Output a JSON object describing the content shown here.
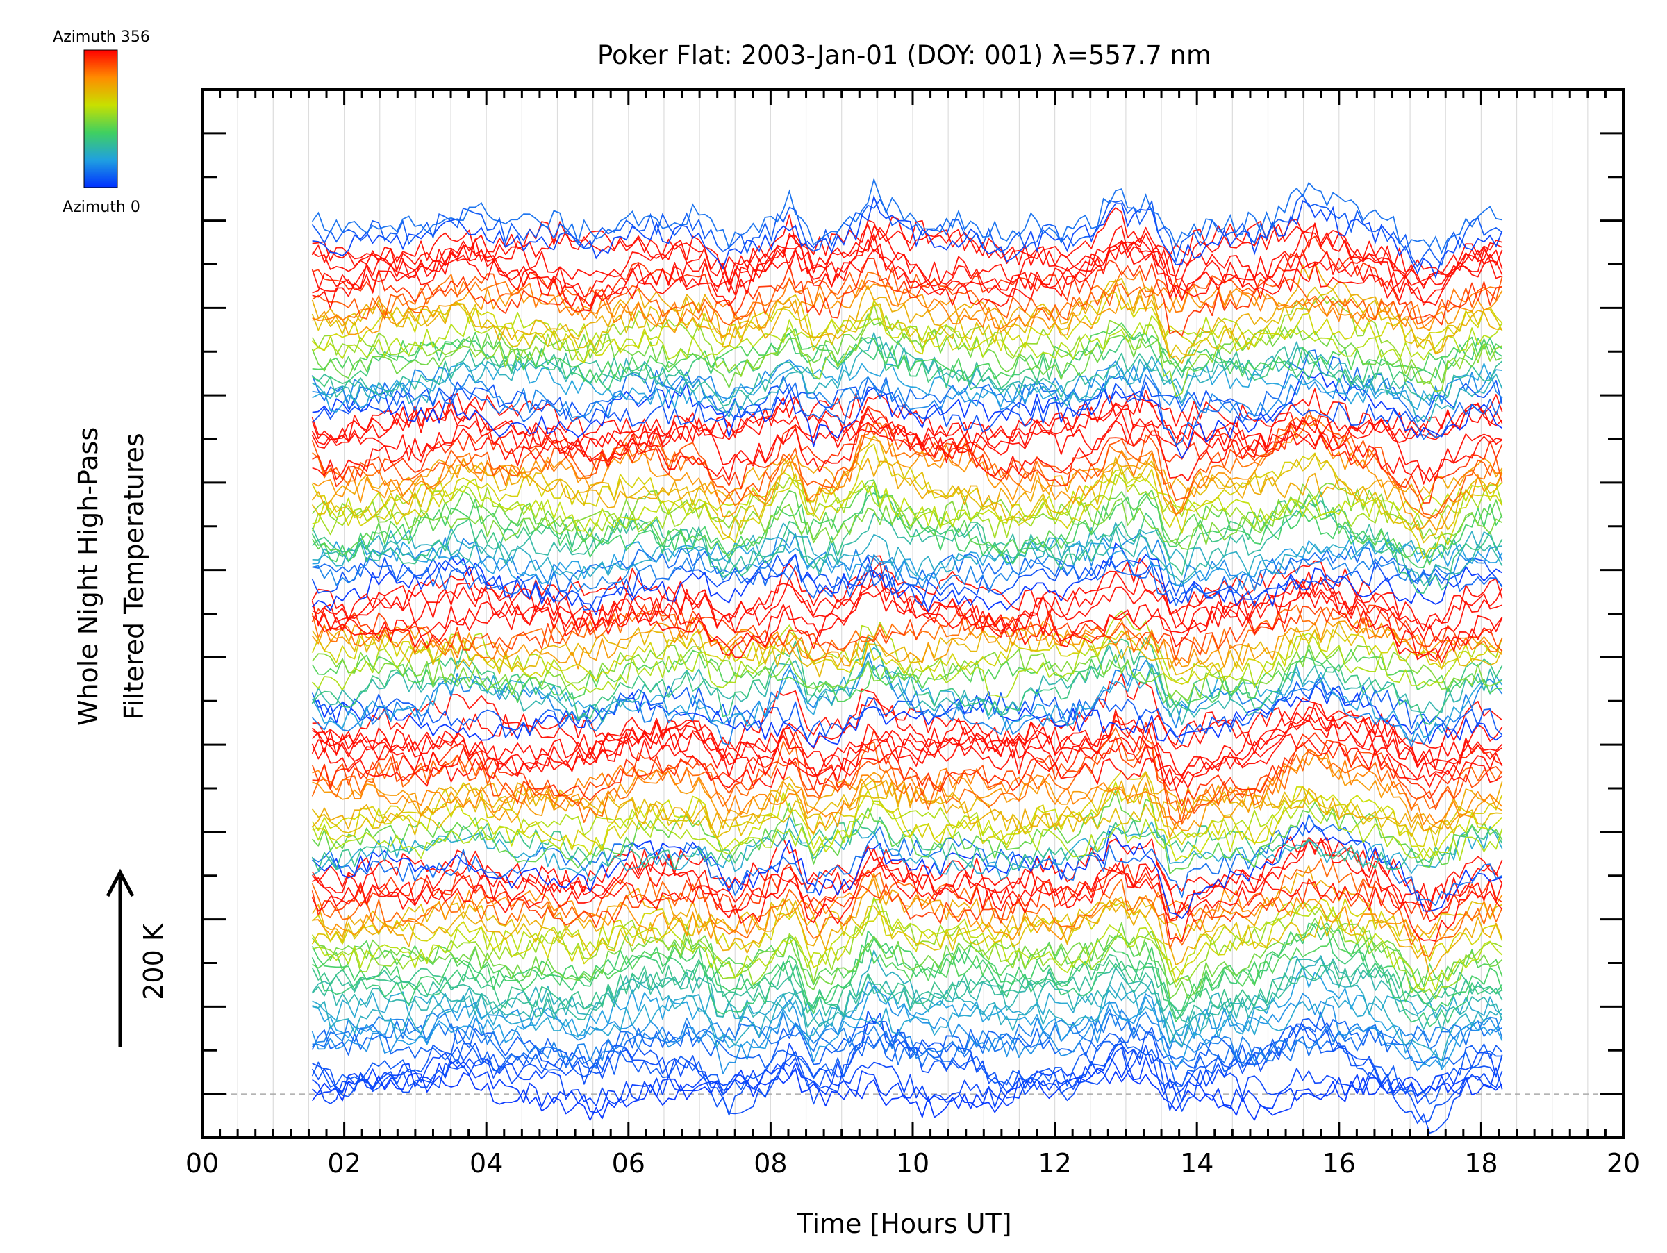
{
  "chart_data": {
    "type": "line",
    "title": "Poker Flat: 2003-Jan-01 (DOY: 001) λ=557.7 nm",
    "xlabel": "Time [Hours UT]",
    "ylabel_line1": "Whole Night High-Pass",
    "ylabel_line2": "Filtered Temperatures",
    "scale_label": "200 K",
    "xlim": [
      0,
      20
    ],
    "ylim": [
      -0.5,
      11.5
    ],
    "x_ticks": [
      "00",
      "02",
      "04",
      "06",
      "08",
      "10",
      "12",
      "14",
      "16",
      "18",
      "20"
    ],
    "x_tick_values": [
      0,
      2,
      4,
      6,
      8,
      10,
      12,
      14,
      16,
      18,
      20
    ],
    "x_minor_step": 0.25,
    "y_major_step": 1,
    "y_minor_step": 0.5,
    "vertical_grid": true,
    "baseline_dashed_at": 0,
    "colorbar": {
      "top_label": "Azimuth 356",
      "bottom_label": "Azimuth 0",
      "colors": [
        "#ff0000",
        "#ff8c00",
        "#c8e000",
        "#40d060",
        "#20a0e0",
        "#0030ff"
      ]
    },
    "time_range": [
      1.55,
      18.35
    ],
    "line_styling": {
      "stroke_width": 1.7,
      "opacity": 0.95
    },
    "series_note": "approximately 160 azimuth traces, each offset vertically; colour encodes azimuth",
    "series": [
      {
        "azimuth": 0,
        "offset": 0.0
      },
      {
        "azimuth": 30,
        "offset": 0.5
      },
      {
        "azimuth": 90,
        "offset": 1.0
      },
      {
        "azimuth": 150,
        "offset": 1.5
      },
      {
        "azimuth": 260,
        "offset": 2.0
      },
      {
        "azimuth": 350,
        "offset": 2.3
      },
      {
        "azimuth": 0,
        "offset": 2.6
      },
      {
        "azimuth": 200,
        "offset": 3.0
      },
      {
        "azimuth": 350,
        "offset": 3.8
      },
      {
        "azimuth": 0,
        "offset": 4.3
      },
      {
        "azimuth": 350,
        "offset": 5.4
      },
      {
        "azimuth": 0,
        "offset": 5.8
      },
      {
        "azimuth": 350,
        "offset": 7.4
      },
      {
        "azimuth": 0,
        "offset": 7.8
      },
      {
        "azimuth": 350,
        "offset": 9.3
      },
      {
        "azimuth": 0,
        "offset": 9.8
      }
    ]
  }
}
